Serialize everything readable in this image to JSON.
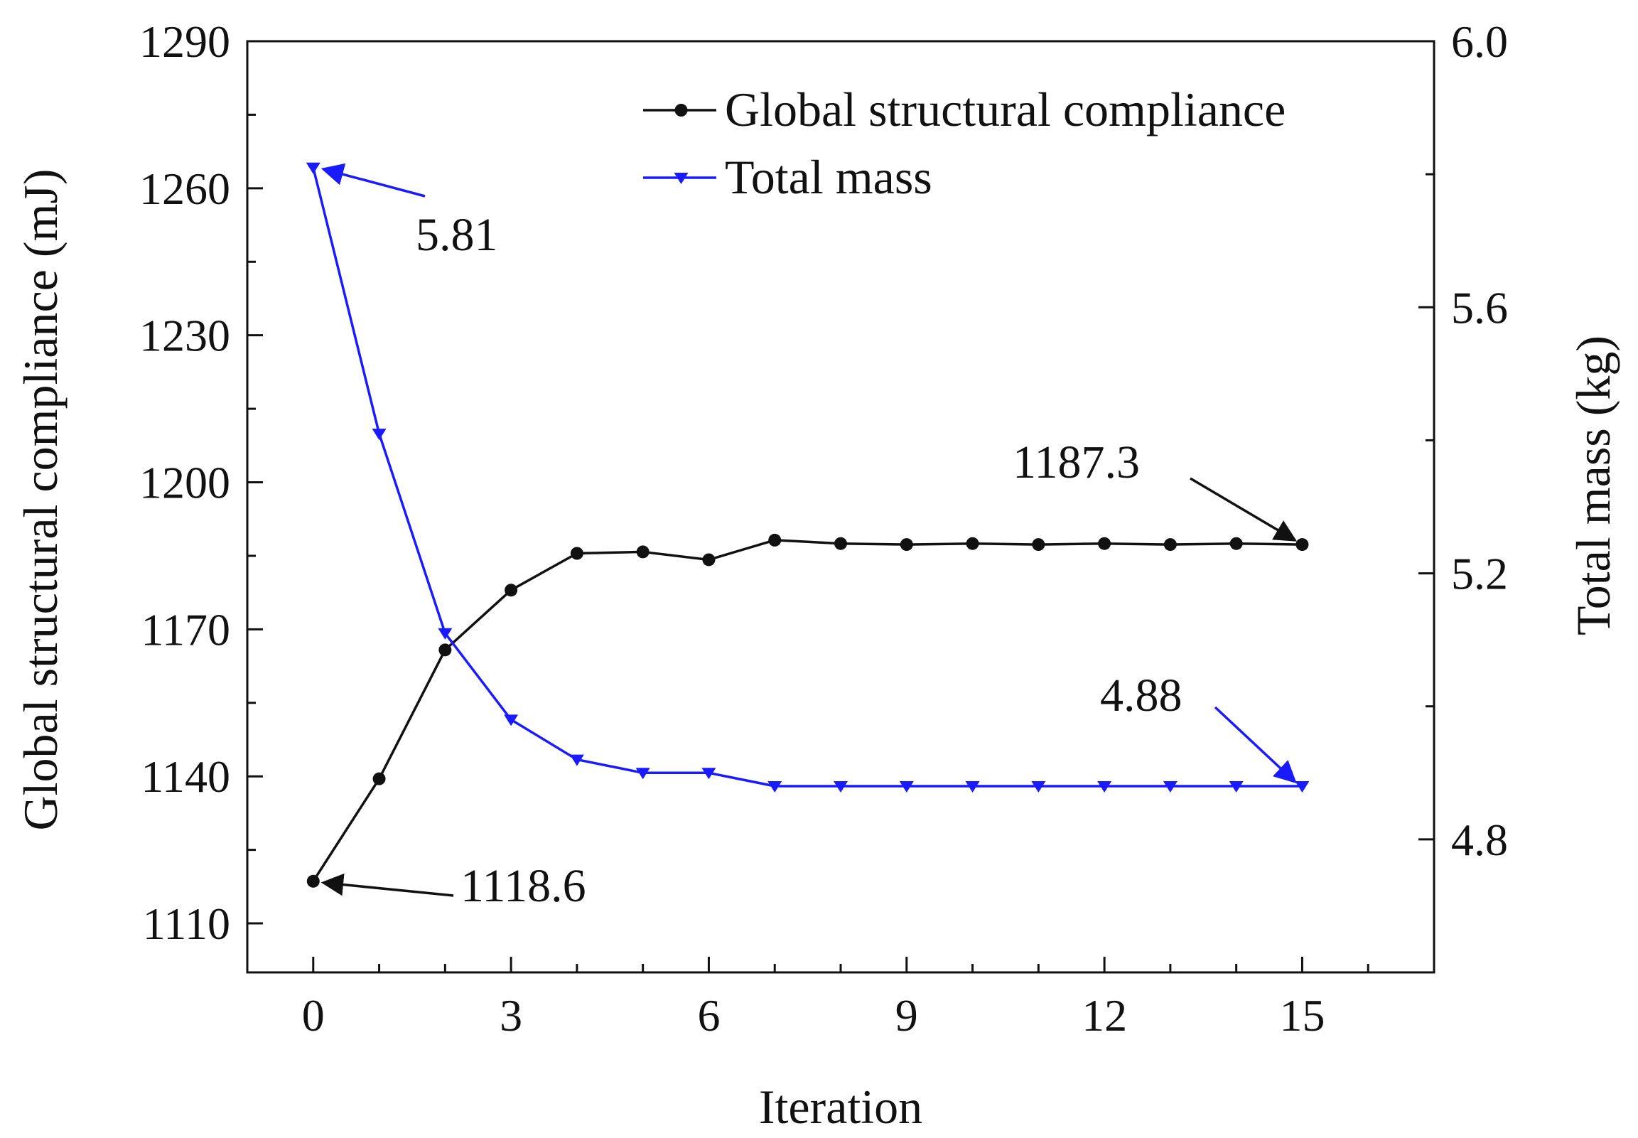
{
  "chart_data": {
    "type": "line",
    "xlabel": "Iteration",
    "ylabel_left": "Global structural compliance (mJ)",
    "ylabel_right": "Total mass (kg)",
    "xlim": [
      -1,
      17
    ],
    "xticks": [
      0,
      3,
      6,
      9,
      12,
      15
    ],
    "xtick_labels": [
      "0",
      "3",
      "6",
      "9",
      "12",
      "15"
    ],
    "ylim_left": [
      1100,
      1290
    ],
    "yticks_left": [
      1110,
      1140,
      1170,
      1200,
      1230,
      1260,
      1290
    ],
    "ytick_labels_left": [
      "1110",
      "1140",
      "1170",
      "1200",
      "1230",
      "1260",
      "1290"
    ],
    "ylim_right": [
      4.6,
      6.0
    ],
    "yticks_right": [
      4.8,
      5.2,
      5.6,
      6.0
    ],
    "ytick_labels_right": [
      "4.8",
      "5.2",
      "5.6",
      "6.0"
    ],
    "x": [
      0,
      1,
      2,
      3,
      4,
      5,
      6,
      7,
      8,
      9,
      10,
      11,
      12,
      13,
      14,
      15
    ],
    "series": [
      {
        "name": "Global structural compliance",
        "axis": "left",
        "color": "#111111",
        "marker": "circle",
        "values": [
          1118.6,
          1139.5,
          1165.8,
          1178.0,
          1185.5,
          1185.8,
          1184.2,
          1188.2,
          1187.5,
          1187.3,
          1187.5,
          1187.3,
          1187.5,
          1187.3,
          1187.5,
          1187.3
        ]
      },
      {
        "name": "Total mass",
        "axis": "right",
        "color": "#1a1aff",
        "marker": "triangle-down",
        "values": [
          5.81,
          5.41,
          5.11,
          4.98,
          4.92,
          4.9,
          4.9,
          4.88,
          4.88,
          4.88,
          4.88,
          4.88,
          4.88,
          4.88,
          4.88,
          4.88
        ]
      }
    ],
    "annotations": [
      {
        "label": "5.81",
        "point_x": 0,
        "point_value": 5.81,
        "axis": "right",
        "color": "#1a1aff"
      },
      {
        "label": "1118.6",
        "point_x": 0,
        "point_value": 1118.6,
        "axis": "left",
        "color": "#111111"
      },
      {
        "label": "1187.3",
        "point_x": 15,
        "point_value": 1187.3,
        "axis": "left",
        "color": "#111111"
      },
      {
        "label": "4.88",
        "point_x": 15,
        "point_value": 4.88,
        "axis": "right",
        "color": "#1a1aff"
      }
    ],
    "legend_position": "top-right",
    "grid": false
  }
}
